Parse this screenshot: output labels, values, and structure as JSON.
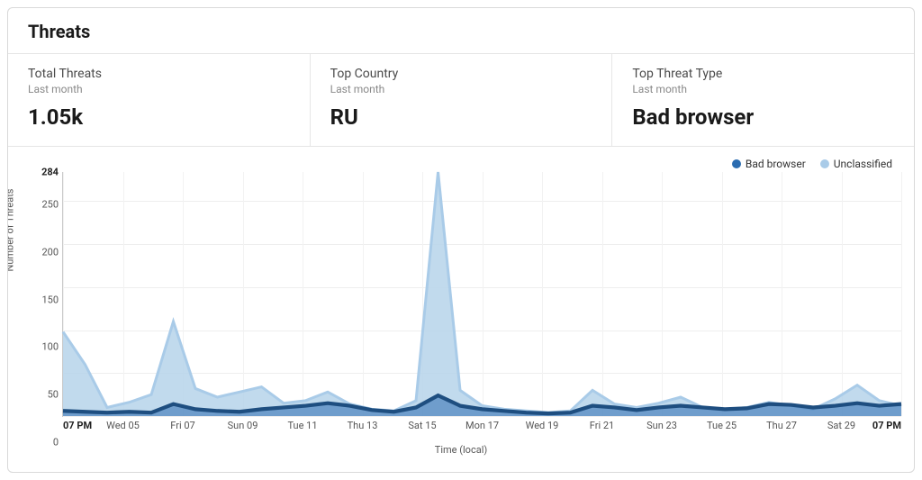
{
  "card": {
    "title": "Threats"
  },
  "stats": [
    {
      "label": "Total Threats",
      "sub": "Last month",
      "value": "1.05k"
    },
    {
      "label": "Top Country",
      "sub": "Last month",
      "value": "RU"
    },
    {
      "label": "Top Threat Type",
      "sub": "Last month",
      "value": "Bad browser"
    }
  ],
  "legend": [
    {
      "label": "Bad browser",
      "color": "#2b6cb0"
    },
    {
      "label": "Unclassified",
      "color": "#a9cbe8"
    }
  ],
  "chart": {
    "type": "area",
    "y_axis_title": "Number of Threats",
    "x_axis_title": "Time (local)",
    "ylim": [
      0,
      284
    ],
    "y_ticks": [
      0,
      50,
      100,
      150,
      200,
      250
    ],
    "y_peak_tick": 284,
    "peak_label": "284",
    "label_fontsize": 11,
    "title_fontsize": 20,
    "background_color": "#ffffff",
    "grid_color": "#eeeeee",
    "x_labels": [
      "07 PM",
      "Wed 05",
      "Fri 07",
      "Sun 09",
      "Tue 11",
      "Thu 13",
      "Sat 15",
      "Mon 17",
      "Wed 19",
      "Fri 21",
      "Sun 23",
      "Tue 25",
      "Thu 27",
      "Sat 29",
      "07 PM"
    ],
    "x_bold_indices": [
      0,
      14
    ],
    "series": [
      {
        "name": "Unclassified",
        "color_fill": "#b6d3ea",
        "color_stroke": "#a9cbe8",
        "fill_opacity": 0.85,
        "stroke_width": 1,
        "values": [
          98,
          60,
          10,
          16,
          25,
          110,
          32,
          22,
          28,
          34,
          15,
          18,
          28,
          14,
          8,
          6,
          18,
          284,
          30,
          12,
          8,
          6,
          4,
          6,
          30,
          14,
          10,
          15,
          22,
          10,
          8,
          10,
          16,
          12,
          8,
          20,
          36,
          18,
          12
        ]
      },
      {
        "name": "Bad browser",
        "color_fill": "#2b6cb0",
        "color_stroke": "#1e4e80",
        "fill_opacity": 0.55,
        "stroke_width": 1.4,
        "values": [
          6,
          5,
          4,
          5,
          4,
          14,
          8,
          6,
          5,
          8,
          10,
          12,
          15,
          12,
          7,
          5,
          10,
          24,
          12,
          8,
          6,
          4,
          3,
          4,
          12,
          10,
          7,
          10,
          12,
          10,
          8,
          9,
          14,
          13,
          10,
          12,
          15,
          12,
          14
        ]
      }
    ]
  }
}
